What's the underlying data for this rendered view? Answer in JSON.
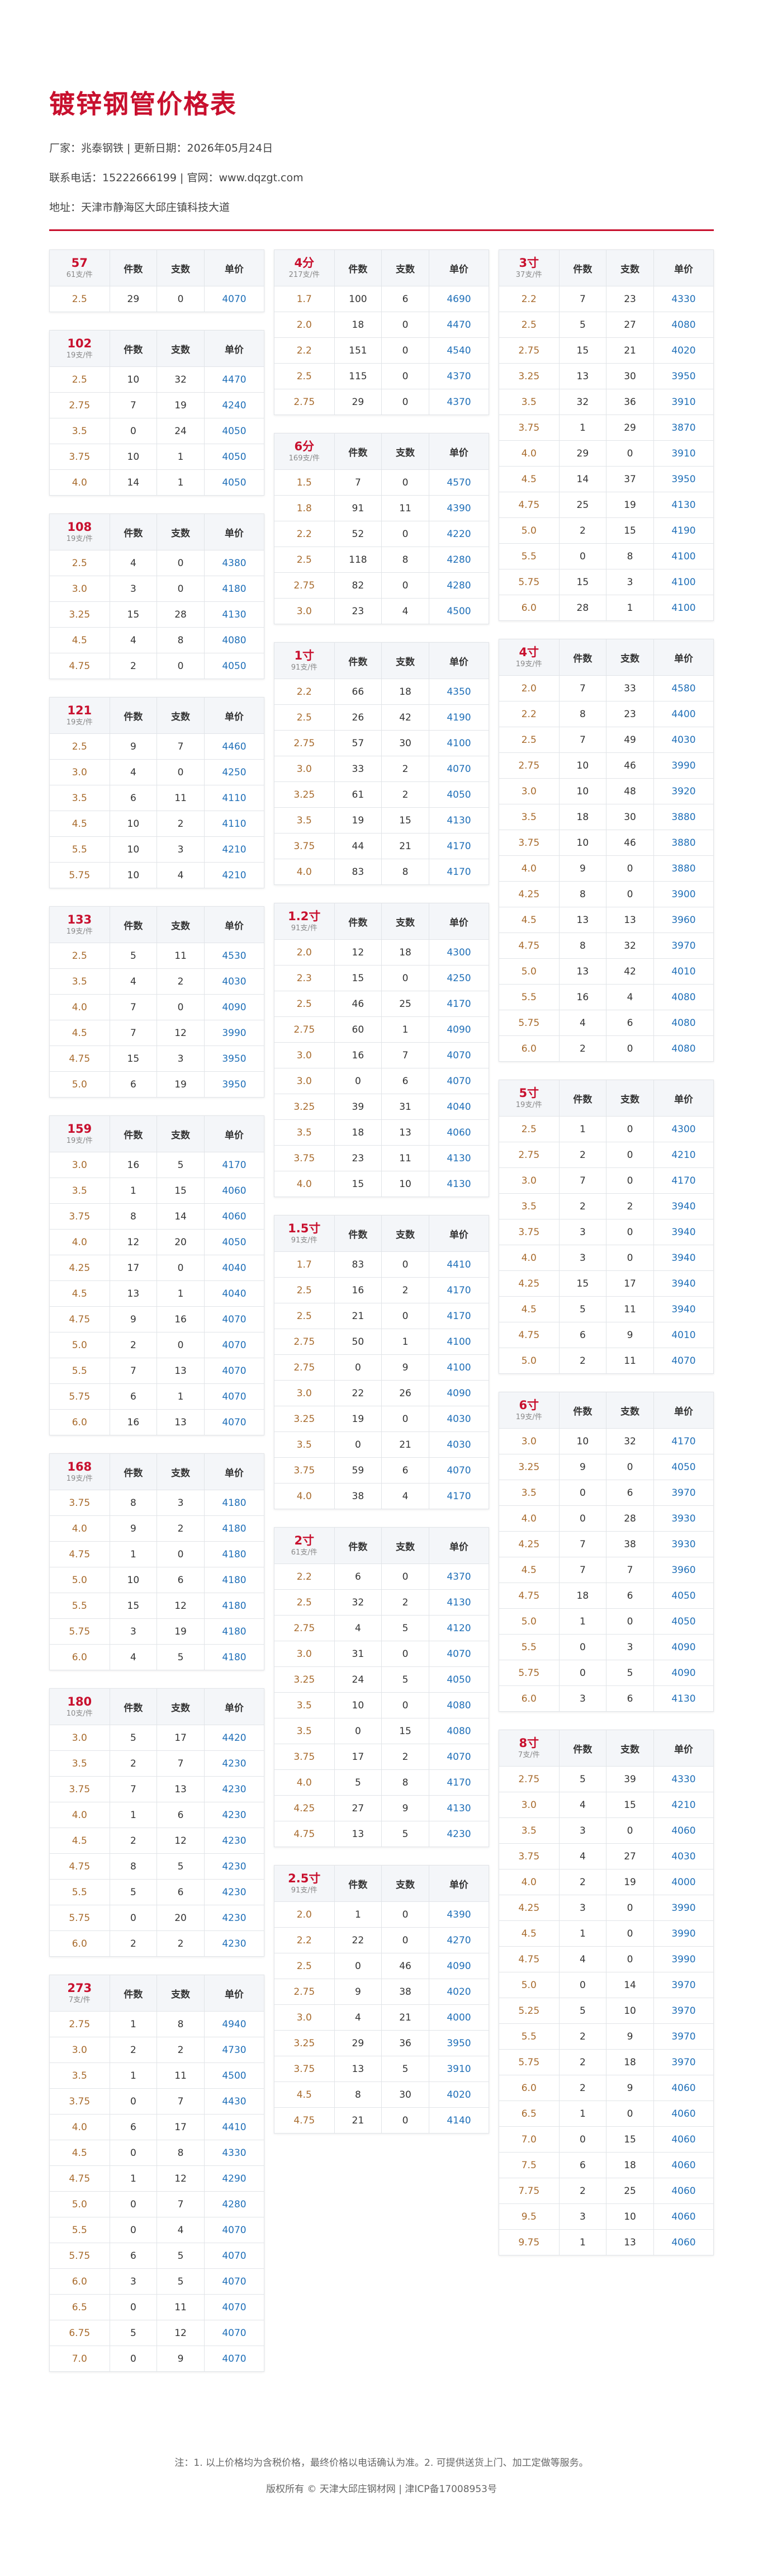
{
  "header": {
    "title": "镀锌钢管价格表",
    "lines": [
      "厂家：兆泰钢铁 | 更新日期：2026年05月24日",
      "联系电话：15222666199 | 官网：www.dqzgt.com",
      "地址：天津市静海区大邱庄镇科技大道"
    ]
  },
  "columns": [
    "件数",
    "支数",
    "单价"
  ],
  "tables": [
    {
      "name": "57",
      "sub": "61支/件",
      "rows": [
        [
          "2.5",
          29,
          0,
          4070
        ]
      ]
    },
    {
      "name": "102",
      "sub": "19支/件",
      "rows": [
        [
          "2.5",
          10,
          32,
          4470
        ],
        [
          "2.75",
          7,
          19,
          4240
        ],
        [
          "3.5",
          0,
          24,
          4050
        ],
        [
          "3.75",
          10,
          1,
          4050
        ],
        [
          "4.0",
          14,
          1,
          4050
        ]
      ]
    },
    {
      "name": "108",
      "sub": "19支/件",
      "rows": [
        [
          "2.5",
          4,
          0,
          4380
        ],
        [
          "3.0",
          3,
          0,
          4180
        ],
        [
          "3.25",
          15,
          28,
          4130
        ],
        [
          "4.5",
          4,
          8,
          4080
        ],
        [
          "4.75",
          2,
          0,
          4050
        ]
      ]
    },
    {
      "name": "121",
      "sub": "19支/件",
      "rows": [
        [
          "2.5",
          9,
          7,
          4460
        ],
        [
          "3.0",
          4,
          0,
          4250
        ],
        [
          "3.5",
          6,
          11,
          4110
        ],
        [
          "4.5",
          10,
          2,
          4110
        ],
        [
          "5.5",
          10,
          3,
          4210
        ],
        [
          "5.75",
          10,
          4,
          4210
        ]
      ]
    },
    {
      "name": "133",
      "sub": "19支/件",
      "rows": [
        [
          "2.5",
          5,
          11,
          4530
        ],
        [
          "3.5",
          4,
          2,
          4030
        ],
        [
          "4.0",
          7,
          0,
          4090
        ],
        [
          "4.5",
          7,
          12,
          3990
        ],
        [
          "4.75",
          15,
          3,
          3950
        ],
        [
          "5.0",
          6,
          19,
          3950
        ]
      ]
    },
    {
      "name": "159",
      "sub": "19支/件",
      "rows": [
        [
          "3.0",
          16,
          5,
          4170
        ],
        [
          "3.5",
          1,
          15,
          4060
        ],
        [
          "3.75",
          8,
          14,
          4060
        ],
        [
          "4.0",
          12,
          20,
          4050
        ],
        [
          "4.25",
          17,
          0,
          4040
        ],
        [
          "4.5",
          13,
          1,
          4040
        ],
        [
          "4.75",
          9,
          16,
          4070
        ],
        [
          "5.0",
          2,
          0,
          4070
        ],
        [
          "5.5",
          7,
          13,
          4070
        ],
        [
          "5.75",
          6,
          1,
          4070
        ],
        [
          "6.0",
          16,
          13,
          4070
        ]
      ]
    },
    {
      "name": "168",
      "sub": "19支/件",
      "rows": [
        [
          "3.75",
          8,
          3,
          4180
        ],
        [
          "4.0",
          9,
          2,
          4180
        ],
        [
          "4.75",
          1,
          0,
          4180
        ],
        [
          "5.0",
          10,
          6,
          4180
        ],
        [
          "5.5",
          15,
          12,
          4180
        ],
        [
          "5.75",
          3,
          19,
          4180
        ],
        [
          "6.0",
          4,
          5,
          4180
        ]
      ]
    },
    {
      "name": "180",
      "sub": "10支/件",
      "rows": [
        [
          "3.0",
          5,
          17,
          4420
        ],
        [
          "3.5",
          2,
          7,
          4230
        ],
        [
          "3.75",
          7,
          13,
          4230
        ],
        [
          "4.0",
          1,
          6,
          4230
        ],
        [
          "4.5",
          2,
          12,
          4230
        ],
        [
          "4.75",
          8,
          5,
          4230
        ],
        [
          "5.5",
          5,
          6,
          4230
        ],
        [
          "5.75",
          0,
          20,
          4230
        ],
        [
          "6.0",
          2,
          2,
          4230
        ]
      ]
    },
    {
      "name": "273",
      "sub": "7支/件",
      "rows": [
        [
          "2.75",
          1,
          8,
          4940
        ],
        [
          "3.0",
          2,
          2,
          4730
        ],
        [
          "3.5",
          1,
          11,
          4500
        ],
        [
          "3.75",
          0,
          7,
          4430
        ],
        [
          "4.0",
          6,
          17,
          4410
        ],
        [
          "4.5",
          0,
          8,
          4330
        ],
        [
          "4.75",
          1,
          12,
          4290
        ],
        [
          "5.0",
          0,
          7,
          4280
        ],
        [
          "5.5",
          0,
          4,
          4070
        ],
        [
          "5.75",
          6,
          5,
          4070
        ],
        [
          "6.0",
          3,
          5,
          4070
        ],
        [
          "6.5",
          0,
          11,
          4070
        ],
        [
          "6.75",
          5,
          12,
          4070
        ],
        [
          "7.0",
          0,
          9,
          4070
        ]
      ]
    },
    {
      "name": "4分",
      "sub": "217支/件",
      "rows": [
        [
          "1.7",
          100,
          6,
          4690
        ],
        [
          "2.0",
          18,
          0,
          4470
        ],
        [
          "2.2",
          151,
          0,
          4540
        ],
        [
          "2.5",
          115,
          0,
          4370
        ],
        [
          "2.75",
          29,
          0,
          4370
        ]
      ]
    },
    {
      "name": "6分",
      "sub": "169支/件",
      "rows": [
        [
          "1.5",
          7,
          0,
          4570
        ],
        [
          "1.8",
          91,
          11,
          4390
        ],
        [
          "2.2",
          52,
          0,
          4220
        ],
        [
          "2.5",
          118,
          8,
          4280
        ],
        [
          "2.75",
          82,
          0,
          4280
        ],
        [
          "3.0",
          23,
          4,
          4500
        ]
      ]
    },
    {
      "name": "1寸",
      "sub": "91支/件",
      "rows": [
        [
          "2.2",
          66,
          18,
          4350
        ],
        [
          "2.5",
          26,
          42,
          4190
        ],
        [
          "2.75",
          57,
          30,
          4100
        ],
        [
          "3.0",
          33,
          2,
          4070
        ],
        [
          "3.25",
          61,
          2,
          4050
        ],
        [
          "3.5",
          19,
          15,
          4130
        ],
        [
          "3.75",
          44,
          21,
          4170
        ],
        [
          "4.0",
          83,
          8,
          4170
        ]
      ]
    },
    {
      "name": "1.2寸",
      "sub": "91支/件",
      "rows": [
        [
          "2.0",
          12,
          18,
          4300
        ],
        [
          "2.3",
          15,
          0,
          4250
        ],
        [
          "2.5",
          46,
          25,
          4170
        ],
        [
          "2.75",
          60,
          1,
          4090
        ],
        [
          "3.0",
          16,
          7,
          4070
        ],
        [
          "3.0",
          0,
          6,
          4070
        ],
        [
          "3.25",
          39,
          31,
          4040
        ],
        [
          "3.5",
          18,
          13,
          4060
        ],
        [
          "3.75",
          23,
          11,
          4130
        ],
        [
          "4.0",
          15,
          10,
          4130
        ]
      ]
    },
    {
      "name": "1.5寸",
      "sub": "91支/件",
      "rows": [
        [
          "1.7",
          83,
          0,
          4410
        ],
        [
          "2.5",
          16,
          2,
          4170
        ],
        [
          "2.5",
          21,
          0,
          4170
        ],
        [
          "2.75",
          50,
          1,
          4100
        ],
        [
          "2.75",
          0,
          9,
          4100
        ],
        [
          "3.0",
          22,
          26,
          4090
        ],
        [
          "3.25",
          19,
          0,
          4030
        ],
        [
          "3.5",
          0,
          21,
          4030
        ],
        [
          "3.75",
          59,
          6,
          4070
        ],
        [
          "4.0",
          38,
          4,
          4170
        ]
      ]
    },
    {
      "name": "2寸",
      "sub": "61支/件",
      "rows": [
        [
          "2.2",
          6,
          0,
          4370
        ],
        [
          "2.5",
          32,
          2,
          4130
        ],
        [
          "2.75",
          4,
          5,
          4120
        ],
        [
          "3.0",
          31,
          0,
          4070
        ],
        [
          "3.25",
          24,
          5,
          4050
        ],
        [
          "3.5",
          10,
          0,
          4080
        ],
        [
          "3.5",
          0,
          15,
          4080
        ],
        [
          "3.75",
          17,
          2,
          4070
        ],
        [
          "4.0",
          5,
          8,
          4170
        ],
        [
          "4.25",
          27,
          9,
          4130
        ],
        [
          "4.75",
          13,
          5,
          4230
        ]
      ]
    },
    {
      "name": "2.5寸",
      "sub": "91支/件",
      "rows": [
        [
          "2.0",
          1,
          0,
          4390
        ],
        [
          "2.2",
          22,
          0,
          4270
        ],
        [
          "2.5",
          0,
          46,
          4090
        ],
        [
          "2.75",
          9,
          38,
          4020
        ],
        [
          "3.0",
          4,
          21,
          4000
        ],
        [
          "3.25",
          29,
          36,
          3950
        ],
        [
          "3.75",
          13,
          5,
          3910
        ],
        [
          "4.5",
          8,
          30,
          4020
        ],
        [
          "4.75",
          21,
          0,
          4140
        ]
      ]
    },
    {
      "name": "3寸",
      "sub": "37支/件",
      "rows": [
        [
          "2.2",
          7,
          23,
          4330
        ],
        [
          "2.5",
          5,
          27,
          4080
        ],
        [
          "2.75",
          15,
          21,
          4020
        ],
        [
          "3.25",
          13,
          30,
          3950
        ],
        [
          "3.5",
          32,
          36,
          3910
        ],
        [
          "3.75",
          1,
          29,
          3870
        ],
        [
          "4.0",
          29,
          0,
          3910
        ],
        [
          "4.5",
          14,
          37,
          3950
        ],
        [
          "4.75",
          25,
          19,
          4130
        ],
        [
          "5.0",
          2,
          15,
          4190
        ],
        [
          "5.5",
          0,
          8,
          4100
        ],
        [
          "5.75",
          15,
          3,
          4100
        ],
        [
          "6.0",
          28,
          1,
          4100
        ]
      ]
    },
    {
      "name": "4寸",
      "sub": "19支/件",
      "rows": [
        [
          "2.0",
          7,
          33,
          4580
        ],
        [
          "2.2",
          8,
          23,
          4400
        ],
        [
          "2.5",
          7,
          49,
          4030
        ],
        [
          "2.75",
          10,
          46,
          3990
        ],
        [
          "3.0",
          10,
          48,
          3920
        ],
        [
          "3.5",
          18,
          30,
          3880
        ],
        [
          "3.75",
          10,
          46,
          3880
        ],
        [
          "4.0",
          9,
          0,
          3880
        ],
        [
          "4.25",
          8,
          0,
          3900
        ],
        [
          "4.5",
          13,
          13,
          3960
        ],
        [
          "4.75",
          8,
          32,
          3970
        ],
        [
          "5.0",
          13,
          42,
          4010
        ],
        [
          "5.5",
          16,
          4,
          4080
        ],
        [
          "5.75",
          4,
          6,
          4080
        ],
        [
          "6.0",
          2,
          0,
          4080
        ]
      ]
    },
    {
      "name": "5寸",
      "sub": "19支/件",
      "rows": [
        [
          "2.5",
          1,
          0,
          4300
        ],
        [
          "2.75",
          2,
          0,
          4210
        ],
        [
          "3.0",
          7,
          0,
          4170
        ],
        [
          "3.5",
          2,
          2,
          3940
        ],
        [
          "3.75",
          3,
          0,
          3940
        ],
        [
          "4.0",
          3,
          0,
          3940
        ],
        [
          "4.25",
          15,
          17,
          3940
        ],
        [
          "4.5",
          5,
          11,
          3940
        ],
        [
          "4.75",
          6,
          9,
          4010
        ],
        [
          "5.0",
          2,
          11,
          4070
        ]
      ]
    },
    {
      "name": "6寸",
      "sub": "19支/件",
      "rows": [
        [
          "3.0",
          10,
          32,
          4170
        ],
        [
          "3.25",
          9,
          0,
          4050
        ],
        [
          "3.5",
          0,
          6,
          3970
        ],
        [
          "4.0",
          0,
          28,
          3930
        ],
        [
          "4.25",
          7,
          38,
          3930
        ],
        [
          "4.5",
          7,
          7,
          3960
        ],
        [
          "4.75",
          18,
          6,
          4050
        ],
        [
          "5.0",
          1,
          0,
          4050
        ],
        [
          "5.5",
          0,
          3,
          4090
        ],
        [
          "5.75",
          0,
          5,
          4090
        ],
        [
          "6.0",
          3,
          6,
          4130
        ]
      ]
    },
    {
      "name": "8寸",
      "sub": "7支/件",
      "rows": [
        [
          "2.75",
          5,
          39,
          4330
        ],
        [
          "3.0",
          4,
          15,
          4210
        ],
        [
          "3.5",
          3,
          0,
          4060
        ],
        [
          "3.75",
          4,
          27,
          4030
        ],
        [
          "4.0",
          2,
          19,
          4000
        ],
        [
          "4.25",
          3,
          0,
          3990
        ],
        [
          "4.5",
          1,
          0,
          3990
        ],
        [
          "4.75",
          4,
          0,
          3990
        ],
        [
          "5.0",
          0,
          14,
          3970
        ],
        [
          "5.25",
          5,
          10,
          3970
        ],
        [
          "5.5",
          2,
          9,
          3970
        ],
        [
          "5.75",
          2,
          18,
          3970
        ],
        [
          "6.0",
          2,
          9,
          4060
        ],
        [
          "6.5",
          1,
          0,
          4060
        ],
        [
          "7.0",
          0,
          15,
          4060
        ],
        [
          "7.5",
          6,
          18,
          4060
        ],
        [
          "7.75",
          2,
          25,
          4060
        ],
        [
          "9.5",
          3,
          10,
          4060
        ],
        [
          "9.75",
          1,
          13,
          4060
        ]
      ]
    }
  ],
  "footer": [
    "注：1. 以上价格均为含税价格，最终价格以电话确认为准。2. 可提供送货上门、加工定做等服务。",
    "版权所有 © 天津大邱庄钢材网 | 津ICP备17008953号"
  ]
}
